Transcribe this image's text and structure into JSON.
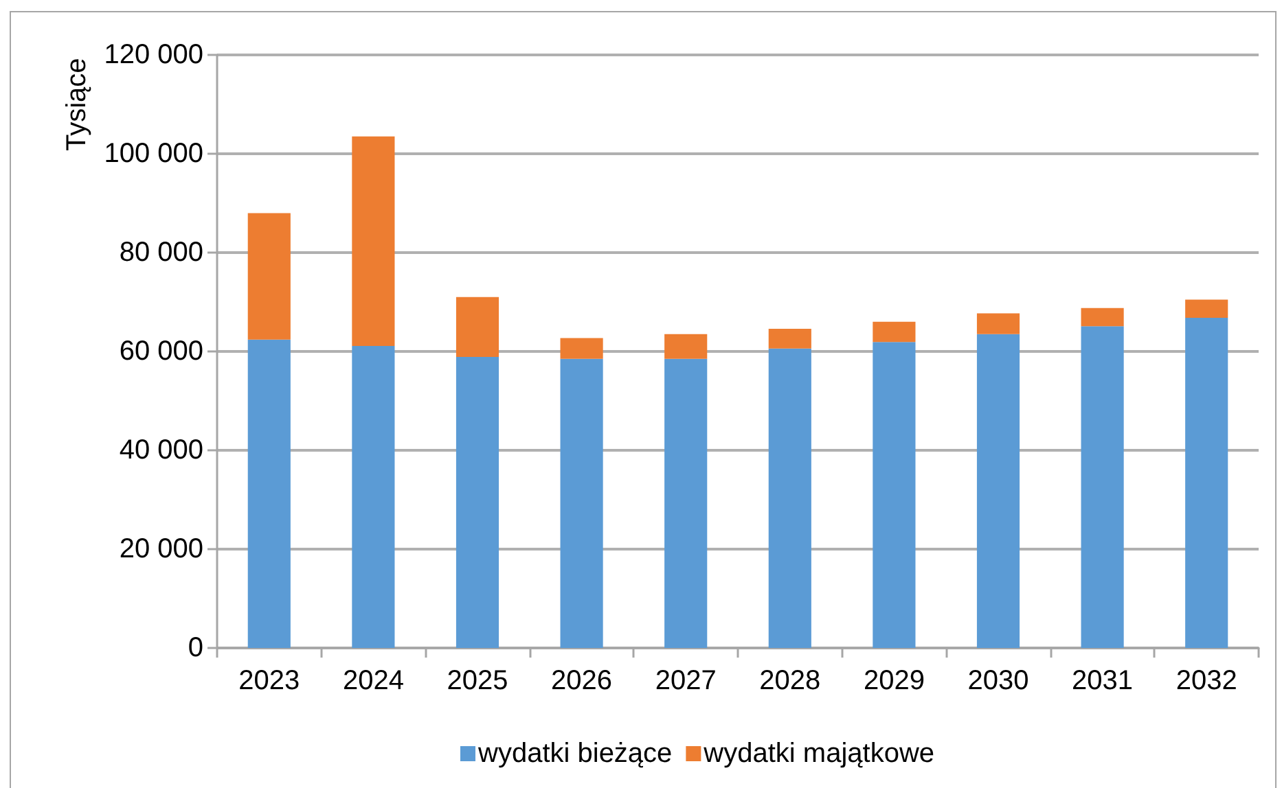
{
  "chart_data": {
    "type": "bar",
    "stacked": true,
    "ylabel": "Tysiące",
    "categories": [
      "2023",
      "2024",
      "2025",
      "2026",
      "2027",
      "2028",
      "2029",
      "2030",
      "2031",
      "2032"
    ],
    "series": [
      {
        "name": "wydatki bieżące",
        "color": "#5b9bd5",
        "values": [
          62400,
          61100,
          58900,
          58500,
          58500,
          60600,
          61900,
          63500,
          65100,
          66800
        ]
      },
      {
        "name": "wydatki majątkowe",
        "color": "#ed7d31",
        "values": [
          25600,
          42400,
          12100,
          4200,
          5000,
          4000,
          4100,
          4200,
          3700,
          3700
        ]
      }
    ],
    "ylim": [
      0,
      120000
    ],
    "yticks": [
      0,
      {
        "value": 20000,
        "label": "20 000"
      },
      {
        "value": 40000,
        "label": "40 000"
      },
      {
        "value": 60000,
        "label": "60 000"
      },
      {
        "value": 80000,
        "label": "80 000"
      },
      {
        "value": 100000,
        "label": "100 000"
      },
      {
        "value": 120000,
        "label": "120 000"
      }
    ],
    "grid": "y",
    "legend": "bottom"
  }
}
